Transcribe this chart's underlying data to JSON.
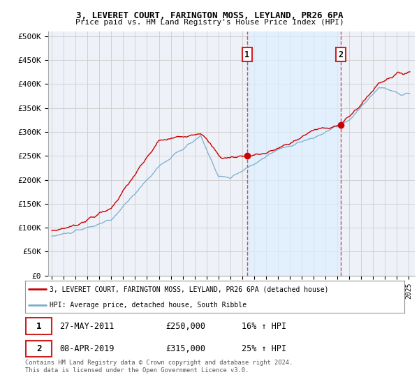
{
  "title1": "3, LEVERET COURT, FARINGTON MOSS, LEYLAND, PR26 6PA",
  "title2": "Price paid vs. HM Land Registry's House Price Index (HPI)",
  "ylabel_ticks": [
    "£0",
    "£50K",
    "£100K",
    "£150K",
    "£200K",
    "£250K",
    "£300K",
    "£350K",
    "£400K",
    "£450K",
    "£500K"
  ],
  "ytick_values": [
    0,
    50000,
    100000,
    150000,
    200000,
    250000,
    300000,
    350000,
    400000,
    450000,
    500000
  ],
  "xlim_start": 1994.7,
  "xlim_end": 2025.5,
  "ylim": [
    0,
    510000
  ],
  "sale1_x": 2011.4,
  "sale1_y": 250000,
  "sale2_x": 2019.27,
  "sale2_y": 315000,
  "annotation1_date": "27-MAY-2011",
  "annotation1_price": "£250,000",
  "annotation1_hpi": "16% ↑ HPI",
  "annotation2_date": "08-APR-2019",
  "annotation2_price": "£315,000",
  "annotation2_hpi": "25% ↑ HPI",
  "legend1": "3, LEVERET COURT, FARINGTON MOSS, LEYLAND, PR26 6PA (detached house)",
  "legend2": "HPI: Average price, detached house, South Ribble",
  "footnote": "Contains HM Land Registry data © Crown copyright and database right 2024.\nThis data is licensed under the Open Government Licence v3.0.",
  "red_color": "#cc0000",
  "blue_color": "#7aadcc",
  "shade_color": "#ddeeff",
  "dashed_color": "#cc3333",
  "bg_color": "#eef2f8",
  "grid_color": "#cccccc",
  "num_box_color": "#cc2222"
}
